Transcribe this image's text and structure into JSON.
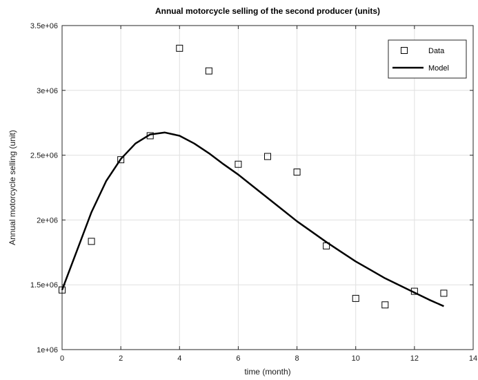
{
  "chart_data": {
    "type": "scatter",
    "title": "Annual motorcycle selling of the second producer (units)",
    "xlabel": "time (month)",
    "ylabel": "Annual motorcycle selling (unit)",
    "xlim": [
      0,
      14
    ],
    "ylim": [
      1000000,
      3500000
    ],
    "xticks": [
      0,
      2,
      4,
      6,
      8,
      10,
      12,
      14
    ],
    "xtick_labels": [
      "0",
      "2",
      "4",
      "6",
      "8",
      "10",
      "12",
      "14"
    ],
    "yticks": [
      1000000,
      1500000,
      2000000,
      2500000,
      3000000,
      3500000
    ],
    "ytick_labels": [
      "1e+06",
      "1.5e+06",
      "2e+06",
      "2.5e+06",
      "3e+06",
      "3.5e+06"
    ],
    "grid": true,
    "legend_position": "top-right",
    "series": [
      {
        "name": "Data",
        "kind": "markers",
        "marker": "square",
        "color": "#000000",
        "x": [
          0,
          1,
          2,
          3,
          4,
          5,
          6,
          7,
          8,
          9,
          10,
          11,
          12,
          13
        ],
        "y": [
          1460000,
          1835000,
          2465000,
          2650000,
          3325000,
          3150000,
          2430000,
          2490000,
          2370000,
          1800000,
          1395000,
          1345000,
          1450000,
          1435000
        ]
      },
      {
        "name": "Model",
        "kind": "line",
        "color": "#000000",
        "x": [
          0,
          0.5,
          1,
          1.5,
          2,
          2.5,
          3,
          3.5,
          4,
          4.5,
          5,
          5.5,
          6,
          6.5,
          7,
          7.5,
          8,
          8.5,
          9,
          9.5,
          10,
          10.5,
          11,
          11.5,
          12,
          12.5,
          13
        ],
        "y": [
          1460000,
          1760000,
          2060000,
          2300000,
          2470000,
          2590000,
          2660000,
          2675000,
          2650000,
          2590000,
          2515000,
          2430000,
          2350000,
          2260000,
          2170000,
          2080000,
          1990000,
          1910000,
          1830000,
          1755000,
          1680000,
          1615000,
          1550000,
          1495000,
          1440000,
          1385000,
          1335000
        ]
      }
    ]
  }
}
